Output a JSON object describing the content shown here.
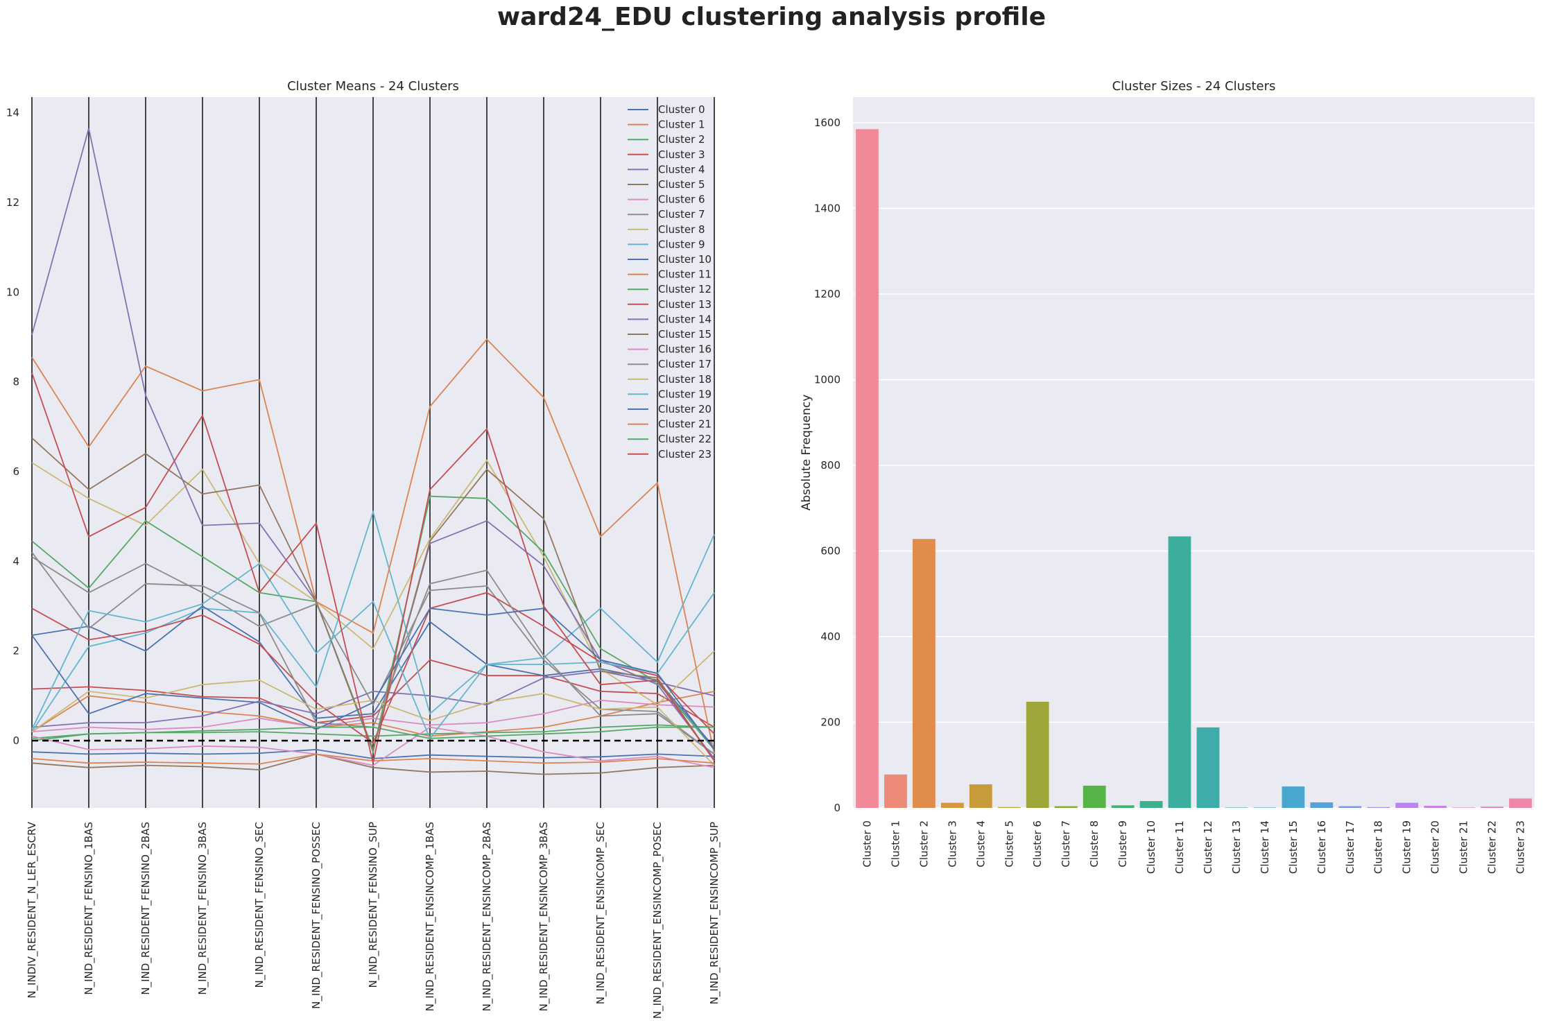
{
  "title": "ward24_EDU clustering analysis profile",
  "chart_data": [
    {
      "type": "line",
      "subtype": "parallel-coordinates",
      "title": "Cluster Means - 24 Clusters",
      "xlabel": "",
      "ylabel": "",
      "ylim": [
        -1.5,
        14.35
      ],
      "yticks": [
        0,
        2,
        4,
        6,
        8,
        10,
        12,
        14
      ],
      "grid": false,
      "legend": "top-right",
      "baseline": 0,
      "categories": [
        "N_INDIV_RESIDENT_N_LER_ESCRV",
        "N_IND_RESIDENT_FENSINO_1BAS",
        "N_IND_RESIDENT_FENSINO_2BAS",
        "N_IND_RESIDENT_FENSINO_3BAS",
        "N_IND_RESIDENT_FENSINO_SEC",
        "N_IND_RESIDENT_FENSINO_POSSEC",
        "N_IND_RESIDENT_FENSINO_SUP",
        "N_IND_RESIDENT_ENSINCOMP_1BAS",
        "N_IND_RESIDENT_ENSINCOMP_2BAS",
        "N_IND_RESIDENT_ENSINCOMP_3BAS",
        "N_IND_RESIDENT_ENSINCOMP_SEC",
        "N_IND_RESIDENT_ENSINCOMP_POSEC",
        "N_IND_RESIDENT_ENSINCOMP_SUP"
      ],
      "series": [
        {
          "name": "Cluster 0",
          "color": "#4c72b0",
          "values": [
            -0.25,
            -0.3,
            -0.28,
            -0.3,
            -0.28,
            -0.2,
            -0.4,
            -0.32,
            -0.35,
            -0.38,
            -0.36,
            -0.3,
            -0.35
          ]
        },
        {
          "name": "Cluster 1",
          "color": "#dd8452",
          "values": [
            0.2,
            1.0,
            0.85,
            0.65,
            0.55,
            0.3,
            0.4,
            0.1,
            0.2,
            0.3,
            0.55,
            0.85,
            1.1
          ]
        },
        {
          "name": "Cluster 2",
          "color": "#55a868",
          "values": [
            0.05,
            0.15,
            0.18,
            0.18,
            0.2,
            0.15,
            0.1,
            0.15,
            0.18,
            0.2,
            0.3,
            0.35,
            0.3
          ]
        },
        {
          "name": "Cluster 3",
          "color": "#c44e52",
          "values": [
            1.15,
            1.2,
            1.12,
            0.98,
            0.95,
            0.4,
            0.55,
            1.8,
            1.45,
            1.45,
            1.1,
            1.05,
            0.3
          ]
        },
        {
          "name": "Cluster 4",
          "color": "#8172b3",
          "values": [
            0.3,
            0.4,
            0.4,
            0.55,
            0.88,
            0.6,
            1.1,
            1.0,
            0.8,
            1.4,
            1.55,
            1.3,
            1.0
          ]
        },
        {
          "name": "Cluster 5",
          "color": "#937860",
          "values": [
            -0.5,
            -0.6,
            -0.55,
            -0.58,
            -0.65,
            -0.3,
            -0.6,
            -0.7,
            -0.68,
            -0.75,
            -0.72,
            -0.6,
            -0.55
          ]
        },
        {
          "name": "Cluster 6",
          "color": "#da8bc3",
          "values": [
            0.2,
            0.3,
            0.25,
            0.3,
            0.5,
            0.3,
            0.5,
            0.35,
            0.4,
            0.6,
            0.9,
            0.8,
            0.75
          ]
        },
        {
          "name": "Cluster 7",
          "color": "#8c8c8c",
          "values": [
            4.1,
            3.3,
            3.95,
            3.3,
            2.55,
            3.05,
            0.8,
            3.35,
            3.45,
            1.8,
            0.7,
            0.65,
            -0.3
          ]
        },
        {
          "name": "Cluster 8",
          "color": "#ccb974",
          "values": [
            6.2,
            5.4,
            4.8,
            6.05,
            3.95,
            3.1,
            2.05,
            4.5,
            6.25,
            4.1,
            1.6,
            0.8,
            2.0
          ]
        },
        {
          "name": "Cluster 9",
          "color": "#64b5cd",
          "values": [
            0.2,
            2.1,
            2.4,
            2.95,
            2.85,
            1.2,
            5.1,
            0.6,
            1.7,
            1.85,
            2.95,
            1.75,
            4.6
          ]
        },
        {
          "name": "Cluster 10",
          "color": "#4c72b0",
          "values": [
            2.35,
            2.55,
            2.0,
            3.0,
            2.2,
            0.5,
            0.6,
            2.65,
            1.7,
            1.45,
            1.6,
            1.35,
            -0.15
          ]
        },
        {
          "name": "Cluster 11",
          "color": "#dd8452",
          "values": [
            8.55,
            6.55,
            8.35,
            7.8,
            8.05,
            3.1,
            2.4,
            7.45,
            8.95,
            7.65,
            4.55,
            5.75,
            -0.3
          ]
        },
        {
          "name": "Cluster 12",
          "color": "#55a868",
          "values": [
            4.45,
            3.4,
            4.9,
            4.1,
            3.3,
            3.1,
            -0.25,
            5.45,
            5.4,
            4.2,
            2.05,
            1.3,
            -0.2
          ]
        },
        {
          "name": "Cluster 13",
          "color": "#c44e52",
          "values": [
            2.95,
            2.25,
            2.45,
            2.8,
            2.15,
            0.85,
            -0.05,
            2.95,
            3.3,
            2.55,
            1.75,
            1.45,
            0.15
          ]
        },
        {
          "name": "Cluster 14",
          "color": "#8172b3",
          "values": [
            9.05,
            13.65,
            7.7,
            4.8,
            4.85,
            3.1,
            -0.2,
            4.4,
            4.9,
            3.9,
            1.8,
            1.25,
            -0.4
          ]
        },
        {
          "name": "Cluster 15",
          "color": "#937860",
          "values": [
            6.75,
            5.6,
            6.4,
            5.5,
            5.7,
            3.1,
            -0.2,
            4.45,
            6.05,
            4.95,
            1.55,
            1.4,
            -0.45
          ]
        },
        {
          "name": "Cluster 16",
          "color": "#da8bc3",
          "values": [
            0.1,
            -0.2,
            -0.18,
            -0.12,
            -0.15,
            -0.3,
            -0.55,
            0.3,
            0.1,
            -0.25,
            -0.45,
            -0.35,
            -0.6
          ]
        },
        {
          "name": "Cluster 17",
          "color": "#8c8c8c",
          "values": [
            4.2,
            2.5,
            3.5,
            3.45,
            2.85,
            0.4,
            0.3,
            3.5,
            3.8,
            1.9,
            0.55,
            0.6,
            -0.3
          ]
        },
        {
          "name": "Cluster 18",
          "color": "#ccb974",
          "values": [
            0.2,
            1.1,
            0.95,
            1.25,
            1.35,
            0.7,
            0.9,
            0.45,
            0.85,
            1.05,
            0.7,
            0.75,
            -0.55
          ]
        },
        {
          "name": "Cluster 19",
          "color": "#64b5cd",
          "values": [
            0.25,
            2.9,
            2.65,
            3.05,
            3.95,
            1.95,
            3.1,
            0.05,
            1.7,
            1.7,
            1.75,
            1.5,
            3.3
          ]
        },
        {
          "name": "Cluster 20",
          "color": "#4c72b0",
          "values": [
            2.35,
            0.6,
            1.05,
            0.95,
            0.85,
            0.25,
            0.85,
            2.95,
            2.8,
            2.95,
            1.8,
            1.5,
            -0.2
          ]
        },
        {
          "name": "Cluster 21",
          "color": "#dd8452",
          "values": [
            -0.4,
            -0.5,
            -0.48,
            -0.5,
            -0.52,
            -0.3,
            -0.45,
            -0.4,
            -0.45,
            -0.5,
            -0.48,
            -0.4,
            -0.5
          ]
        },
        {
          "name": "Cluster 22",
          "color": "#55a868",
          "values": [
            0.0,
            0.15,
            0.18,
            0.22,
            0.25,
            0.3,
            0.3,
            0.05,
            0.1,
            0.15,
            0.2,
            0.3,
            0.3
          ]
        },
        {
          "name": "Cluster 23",
          "color": "#c44e52",
          "values": [
            8.2,
            4.55,
            5.2,
            7.25,
            3.3,
            4.85,
            -0.5,
            5.6,
            6.95,
            3.0,
            1.25,
            1.35,
            -0.45
          ]
        }
      ]
    },
    {
      "type": "bar",
      "title": "Cluster Sizes - 24 Clusters",
      "xlabel": "",
      "ylabel": "Absolute Frequency",
      "ylim": [
        0,
        1660
      ],
      "yticks": [
        0,
        200,
        400,
        600,
        800,
        1000,
        1200,
        1400,
        1600
      ],
      "grid": true,
      "categories": [
        "Cluster 0",
        "Cluster 1",
        "Cluster 2",
        "Cluster 3",
        "Cluster 4",
        "Cluster 5",
        "Cluster 6",
        "Cluster 7",
        "Cluster 8",
        "Cluster 9",
        "Cluster 10",
        "Cluster 11",
        "Cluster 12",
        "Cluster 13",
        "Cluster 14",
        "Cluster 15",
        "Cluster 16",
        "Cluster 17",
        "Cluster 18",
        "Cluster 19",
        "Cluster 20",
        "Cluster 21",
        "Cluster 22",
        "Cluster 23"
      ],
      "values": [
        1585,
        78,
        628,
        12,
        55,
        2,
        248,
        4,
        52,
        6,
        16,
        634,
        188,
        1,
        1,
        50,
        13,
        4,
        2,
        12,
        5,
        1,
        3,
        22
      ],
      "colors": [
        "#f08a98",
        "#ec8c78",
        "#e08c4c",
        "#d5963e",
        "#c79a3a",
        "#b5a03a",
        "#9ea63a",
        "#80ad3c",
        "#56b446",
        "#3eb46f",
        "#3cb08e",
        "#3bae9e",
        "#3dacab",
        "#40aab8",
        "#44a8c4",
        "#49a6cf",
        "#56a2dd",
        "#7a99e8",
        "#9c8ff0",
        "#b986f0",
        "#cd80e6",
        "#de80d4",
        "#e884bc",
        "#ed87a8"
      ]
    }
  ]
}
